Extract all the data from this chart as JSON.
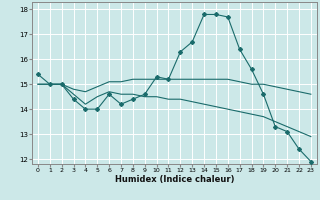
{
  "title": "",
  "xlabel": "Humidex (Indice chaleur)",
  "ylabel": "",
  "xlim": [
    -0.5,
    23.5
  ],
  "ylim": [
    11.8,
    18.3
  ],
  "yticks": [
    12,
    13,
    14,
    15,
    16,
    17,
    18
  ],
  "xticks": [
    0,
    1,
    2,
    3,
    4,
    5,
    6,
    7,
    8,
    9,
    10,
    11,
    12,
    13,
    14,
    15,
    16,
    17,
    18,
    19,
    20,
    21,
    22,
    23
  ],
  "bg_color": "#cce8e8",
  "line_color": "#1a6b6b",
  "grid_color": "#ffffff",
  "series": [
    {
      "x": [
        0,
        1,
        2,
        3,
        4,
        5,
        6,
        7,
        8,
        9,
        10,
        11,
        12,
        13,
        14,
        15,
        16,
        17,
        18,
        19,
        20,
        21,
        22,
        23
      ],
      "y": [
        15.4,
        15.0,
        15.0,
        14.4,
        14.0,
        14.0,
        14.6,
        14.2,
        14.4,
        14.6,
        15.3,
        15.2,
        16.3,
        16.7,
        17.8,
        17.8,
        17.7,
        16.4,
        15.6,
        14.6,
        13.3,
        13.1,
        12.4,
        11.9
      ],
      "has_markers": true
    },
    {
      "x": [
        0,
        1,
        2,
        3,
        4,
        5,
        6,
        7,
        8,
        9,
        10,
        11,
        12,
        13,
        14,
        15,
        16,
        17,
        18,
        19,
        20,
        21,
        22,
        23
      ],
      "y": [
        15.0,
        15.0,
        15.0,
        14.8,
        14.7,
        14.9,
        15.1,
        15.1,
        15.2,
        15.2,
        15.2,
        15.2,
        15.2,
        15.2,
        15.2,
        15.2,
        15.2,
        15.1,
        15.0,
        15.0,
        14.9,
        14.8,
        14.7,
        14.6
      ],
      "has_markers": false
    },
    {
      "x": [
        0,
        1,
        2,
        3,
        4,
        5,
        6,
        7,
        8,
        9,
        10,
        11,
        12,
        13,
        14,
        15,
        16,
        17,
        18,
        19,
        20,
        21,
        22,
        23
      ],
      "y": [
        15.0,
        15.0,
        15.0,
        14.6,
        14.2,
        14.5,
        14.7,
        14.6,
        14.6,
        14.5,
        14.5,
        14.4,
        14.4,
        14.3,
        14.2,
        14.1,
        14.0,
        13.9,
        13.8,
        13.7,
        13.5,
        13.3,
        13.1,
        12.9
      ],
      "has_markers": false
    }
  ]
}
